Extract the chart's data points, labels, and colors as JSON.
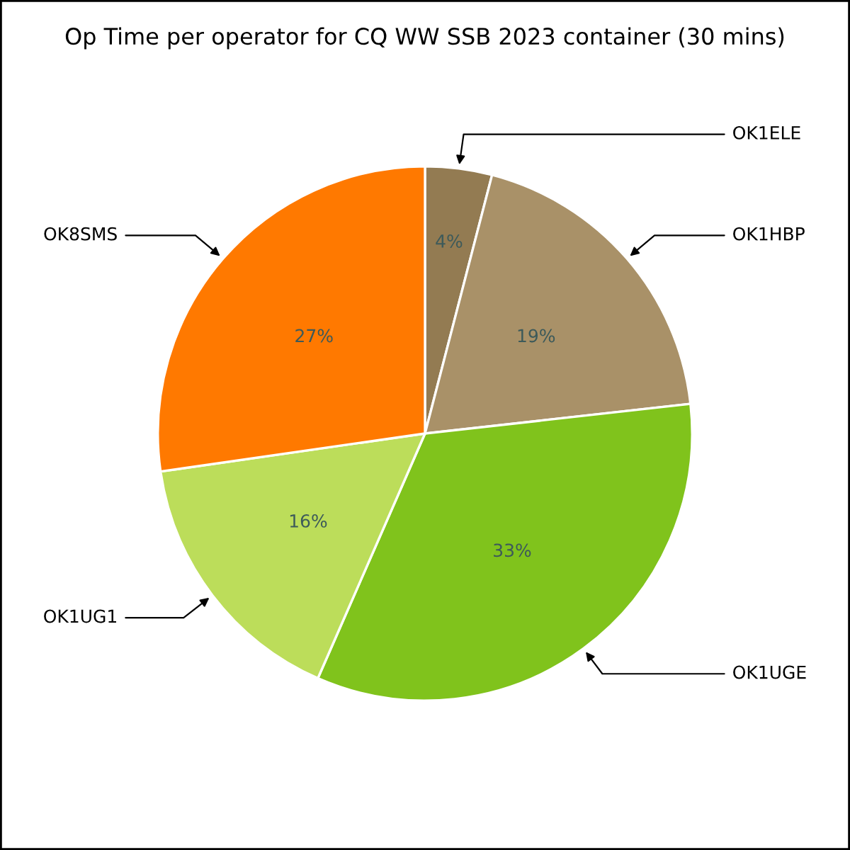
{
  "chart_data": {
    "type": "pie",
    "title": "Op Time per operator for CQ WW SSB 2023 container (30 mins)",
    "categories": [
      "OK1ELE",
      "OK1HBP",
      "OK1UGE",
      "OK1UG1",
      "OK8SMS"
    ],
    "values": [
      4,
      19,
      33,
      16,
      27
    ],
    "value_labels": [
      "4%",
      "19%",
      "33%",
      "16%",
      "27%"
    ],
    "colors": [
      "#937b52",
      "#a99168",
      "#80c31c",
      "#bcdd5a",
      "#ff7900"
    ],
    "legend": false
  }
}
